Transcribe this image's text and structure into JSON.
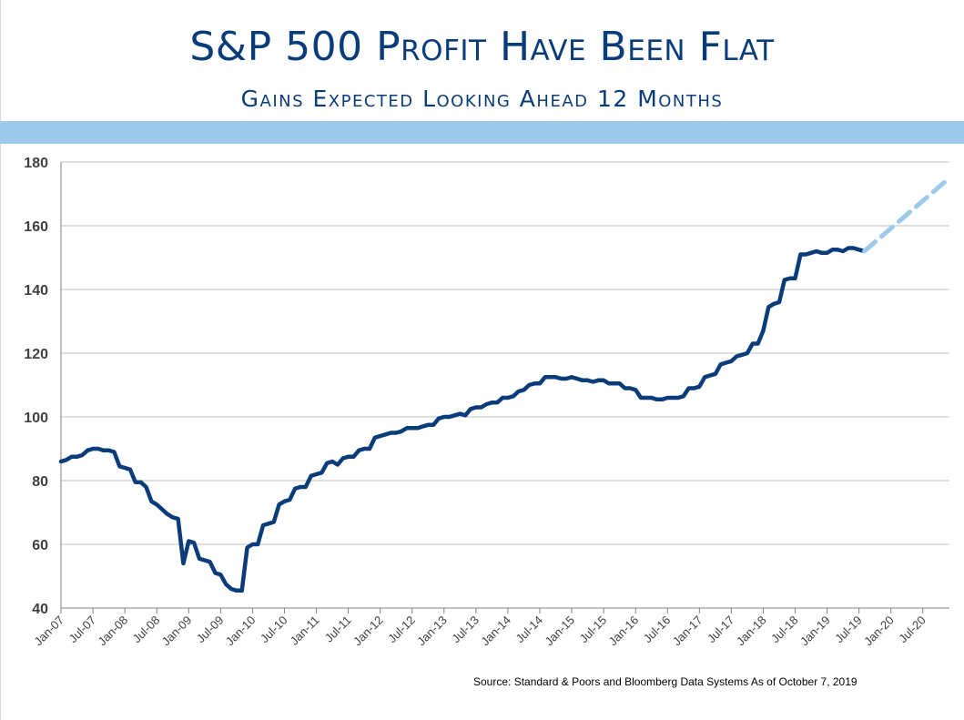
{
  "slide": {
    "title": "S&P 500 Profit Have Been Flat",
    "subtitle": "Gains Expected Looking Ahead 12 Months",
    "source": "Source:  Standard & Poors and Bloomberg Data Systems As of October 7, 2019"
  },
  "colors": {
    "title": "#0b3c7a",
    "band": "#9dcaeb",
    "actual_line": "#0b3c7a",
    "forecast_line": "#9dcaeb",
    "gridline": "#bfbfbf"
  },
  "chart_data": {
    "type": "line",
    "title": "",
    "xlabel": "",
    "ylabel": "",
    "ylim": [
      40,
      180
    ],
    "yticks": [
      40,
      60,
      80,
      100,
      120,
      140,
      160,
      180
    ],
    "grid": "horizontal",
    "x_range": [
      "Jan-07",
      "Dec-20"
    ],
    "xtick_labels": [
      "Jan-07",
      "Jul-07",
      "Jan-08",
      "Jul-08",
      "Jan-09",
      "Jul-09",
      "Jan-10",
      "Jul-10",
      "Jan-11",
      "Jul-11",
      "Jan-12",
      "Jul-12",
      "Jan-13",
      "Jul-13",
      "Jan-14",
      "Jul-14",
      "Jan-15",
      "Jul-15",
      "Jan-16",
      "Jul-16",
      "Jan-17",
      "Jul-17",
      "Jan-18",
      "Jul-18",
      "Jan-19",
      "Jul-19",
      "Jan-20",
      "Jul-20"
    ],
    "series": [
      {
        "style": "solid",
        "points": [
          [
            "Jan-07",
            86
          ],
          [
            "Feb-07",
            86.5
          ],
          [
            "Mar-07",
            87.5
          ],
          [
            "Apr-07",
            87.5
          ],
          [
            "May-07",
            88
          ],
          [
            "Jun-07",
            89.5
          ],
          [
            "Jul-07",
            90
          ],
          [
            "Aug-07",
            90
          ],
          [
            "Sep-07",
            89.5
          ],
          [
            "Oct-07",
            89.5
          ],
          [
            "Nov-07",
            89
          ],
          [
            "Dec-07",
            84.5
          ],
          [
            "Jan-08",
            84
          ],
          [
            "Feb-08",
            83.5
          ],
          [
            "Mar-08",
            79.5
          ],
          [
            "Apr-08",
            79.5
          ],
          [
            "May-08",
            78
          ],
          [
            "Jun-08",
            73.5
          ],
          [
            "Jul-08",
            72.5
          ],
          [
            "Aug-08",
            71
          ],
          [
            "Sep-08",
            69.5
          ],
          [
            "Oct-08",
            68.5
          ],
          [
            "Nov-08",
            68
          ],
          [
            "Dec-08",
            54
          ],
          [
            "Jan-09",
            61
          ],
          [
            "Feb-09",
            60.5
          ],
          [
            "Mar-09",
            55.5
          ],
          [
            "Apr-09",
            55
          ],
          [
            "May-09",
            54.5
          ],
          [
            "Jun-09",
            51
          ],
          [
            "Jul-09",
            50.5
          ],
          [
            "Aug-09",
            47.5
          ],
          [
            "Sep-09",
            46
          ],
          [
            "Oct-09",
            45.5
          ],
          [
            "Nov-09",
            45.5
          ],
          [
            "Dec-09",
            59
          ],
          [
            "Jan-10",
            60
          ],
          [
            "Feb-10",
            60
          ],
          [
            "Mar-10",
            66
          ],
          [
            "Apr-10",
            66.5
          ],
          [
            "May-10",
            67
          ],
          [
            "Jun-10",
            72.5
          ],
          [
            "Jul-10",
            73.5
          ],
          [
            "Aug-10",
            74
          ],
          [
            "Sep-10",
            77.5
          ],
          [
            "Oct-10",
            78
          ],
          [
            "Nov-10",
            78
          ],
          [
            "Dec-10",
            81.5
          ],
          [
            "Jan-11",
            82
          ],
          [
            "Feb-11",
            82.5
          ],
          [
            "Mar-11",
            85.5
          ],
          [
            "Apr-11",
            86
          ],
          [
            "May-11",
            85
          ],
          [
            "Jun-11",
            87
          ],
          [
            "Jul-11",
            87.5
          ],
          [
            "Aug-11",
            87.5
          ],
          [
            "Sep-11",
            89.5
          ],
          [
            "Oct-11",
            90
          ],
          [
            "Nov-11",
            90
          ],
          [
            "Dec-11",
            93.5
          ],
          [
            "Jan-12",
            94
          ],
          [
            "Feb-12",
            94.5
          ],
          [
            "Mar-12",
            95
          ],
          [
            "Apr-12",
            95
          ],
          [
            "May-12",
            95.5
          ],
          [
            "Jun-12",
            96.5
          ],
          [
            "Jul-12",
            96.5
          ],
          [
            "Aug-12",
            96.5
          ],
          [
            "Sep-12",
            97
          ],
          [
            "Oct-12",
            97.5
          ],
          [
            "Nov-12",
            97.5
          ],
          [
            "Dec-12",
            99.5
          ],
          [
            "Jan-13",
            100
          ],
          [
            "Feb-13",
            100
          ],
          [
            "Mar-13",
            100.5
          ],
          [
            "Apr-13",
            101
          ],
          [
            "May-13",
            100.5
          ],
          [
            "Jun-13",
            102.5
          ],
          [
            "Jul-13",
            103
          ],
          [
            "Aug-13",
            103
          ],
          [
            "Sep-13",
            104
          ],
          [
            "Oct-13",
            104.5
          ],
          [
            "Nov-13",
            104.5
          ],
          [
            "Dec-13",
            106
          ],
          [
            "Jan-14",
            106
          ],
          [
            "Feb-14",
            106.5
          ],
          [
            "Mar-14",
            108
          ],
          [
            "Apr-14",
            108.5
          ],
          [
            "May-14",
            110
          ],
          [
            "Jun-14",
            110.5
          ],
          [
            "Jul-14",
            110.5
          ],
          [
            "Aug-14",
            112.5
          ],
          [
            "Sep-14",
            112.5
          ],
          [
            "Oct-14",
            112.5
          ],
          [
            "Nov-14",
            112
          ],
          [
            "Dec-14",
            112
          ],
          [
            "Jan-15",
            112.5
          ],
          [
            "Feb-15",
            112
          ],
          [
            "Mar-15",
            111.5
          ],
          [
            "Apr-15",
            111.5
          ],
          [
            "May-15",
            111
          ],
          [
            "Jun-15",
            111.5
          ],
          [
            "Jul-15",
            111.5
          ],
          [
            "Aug-15",
            110.5
          ],
          [
            "Sep-15",
            110.5
          ],
          [
            "Oct-15",
            110.5
          ],
          [
            "Nov-15",
            109
          ],
          [
            "Dec-15",
            109
          ],
          [
            "Jan-16",
            108.5
          ],
          [
            "Feb-16",
            106
          ],
          [
            "Mar-16",
            106
          ],
          [
            "Apr-16",
            106
          ],
          [
            "May-16",
            105.5
          ],
          [
            "Jun-16",
            105.5
          ],
          [
            "Jul-16",
            106
          ],
          [
            "Aug-16",
            106
          ],
          [
            "Sep-16",
            106
          ],
          [
            "Oct-16",
            106.5
          ],
          [
            "Nov-16",
            109
          ],
          [
            "Dec-16",
            109
          ],
          [
            "Jan-17",
            109.5
          ],
          [
            "Feb-17",
            112.5
          ],
          [
            "Mar-17",
            113
          ],
          [
            "Apr-17",
            113.5
          ],
          [
            "May-17",
            116.5
          ],
          [
            "Jun-17",
            117
          ],
          [
            "Jul-17",
            117.5
          ],
          [
            "Aug-17",
            119
          ],
          [
            "Sep-17",
            119.5
          ],
          [
            "Oct-17",
            120
          ],
          [
            "Nov-17",
            123
          ],
          [
            "Dec-17",
            123
          ],
          [
            "Jan-18",
            127
          ],
          [
            "Feb-18",
            134.5
          ],
          [
            "Mar-18",
            135.5
          ],
          [
            "Apr-18",
            136
          ],
          [
            "May-18",
            143
          ],
          [
            "Jun-18",
            143.5
          ],
          [
            "Jul-18",
            143.5
          ],
          [
            "Aug-18",
            151
          ],
          [
            "Sep-18",
            151
          ],
          [
            "Oct-18",
            151.5
          ],
          [
            "Nov-18",
            152
          ],
          [
            "Dec-18",
            151.5
          ],
          [
            "Jan-19",
            151.5
          ],
          [
            "Feb-19",
            152.5
          ],
          [
            "Mar-19",
            152.5
          ],
          [
            "Apr-19",
            152
          ],
          [
            "May-19",
            153
          ],
          [
            "Jun-19",
            153
          ],
          [
            "Jul-19",
            152.5
          ],
          [
            "Aug-19",
            152
          ]
        ]
      },
      {
        "style": "dashed",
        "points": [
          [
            "Aug-19",
            152
          ],
          [
            "Dec-20",
            175
          ]
        ]
      }
    ],
    "annotations": []
  }
}
